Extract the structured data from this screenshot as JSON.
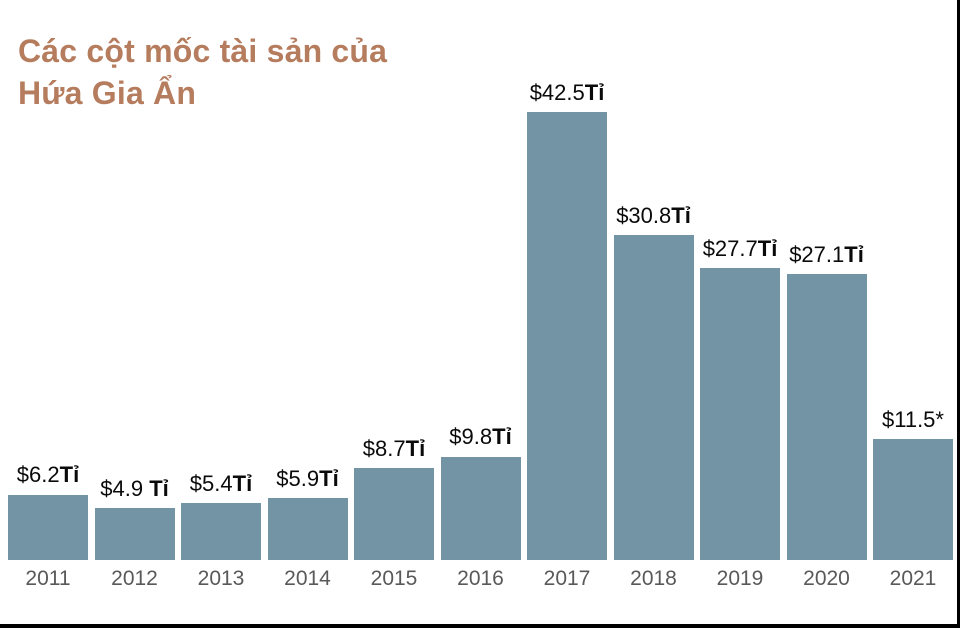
{
  "title": {
    "line1": "Các cột mốc tài sản của",
    "line2": "Hứa Gia Ẩn"
  },
  "chart_data": {
    "type": "bar",
    "title": "Các cột mốc tài sản của Hứa Gia Ẩn",
    "categories": [
      "2011",
      "2012",
      "2013",
      "2014",
      "2015",
      "2016",
      "2017",
      "2018",
      "2019",
      "2020",
      "2021"
    ],
    "values": [
      6.2,
      4.9,
      5.4,
      5.9,
      8.7,
      9.8,
      42.5,
      30.8,
      27.7,
      27.1,
      11.5
    ],
    "labels": [
      {
        "value": "$6.2",
        "unit": "Tỉ"
      },
      {
        "value": "$4.9 ",
        "unit": "Tỉ"
      },
      {
        "value": "$5.4",
        "unit": "Tỉ"
      },
      {
        "value": "$5.9",
        "unit": "Tỉ"
      },
      {
        "value": "$8.7",
        "unit": "Tỉ"
      },
      {
        "value": "$9.8",
        "unit": "Tỉ"
      },
      {
        "value": "$42.5",
        "unit": "Tỉ"
      },
      {
        "value": "$30.8",
        "unit": "Tỉ"
      },
      {
        "value": "$27.7",
        "unit": "Tỉ"
      },
      {
        "value": "$27.1",
        "unit": "Tỉ"
      },
      {
        "value": "$11.5*",
        "unit": ""
      }
    ],
    "unit_suffix": "Tỉ",
    "xlabel": "",
    "ylabel": "",
    "ylim": [
      0,
      53.1
    ],
    "grid": false,
    "legend": "none",
    "colors": {
      "bar": "#7394a4",
      "value_label": "#0a0a0a",
      "axis_label": "#595959",
      "title": "#b57c5e",
      "border": "#000000"
    }
  }
}
